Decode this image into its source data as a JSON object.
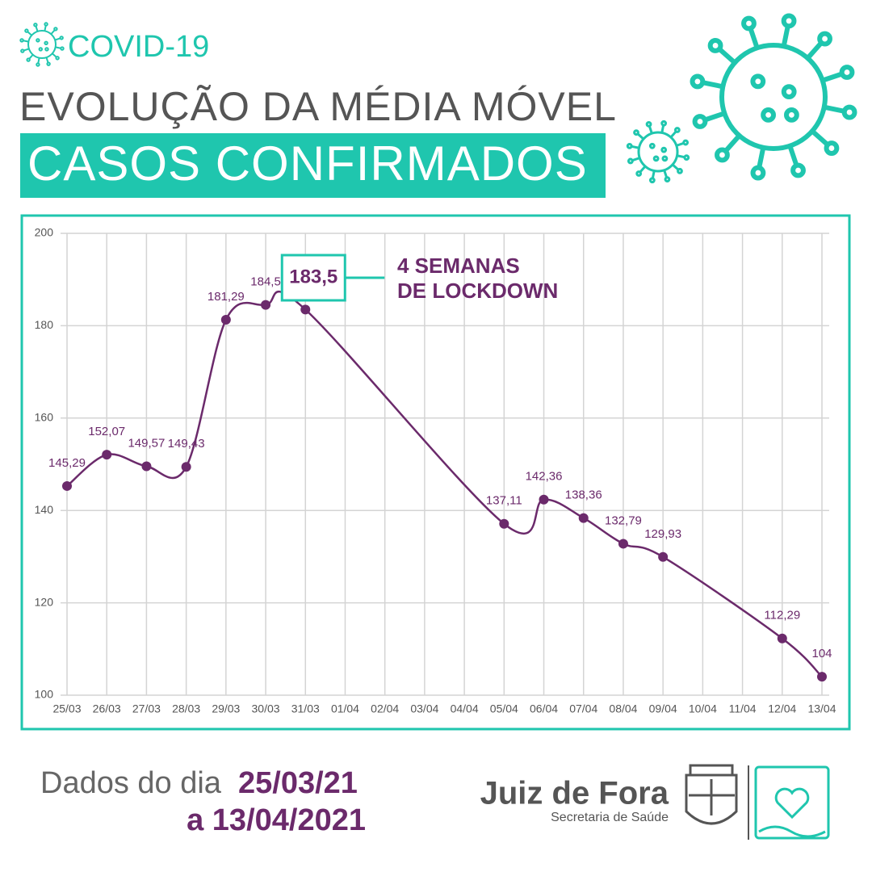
{
  "chart_data": {
    "type": "line",
    "badge": "COVID-19",
    "title": "EVOLUÇÃO DA MÉDIA MÓVEL",
    "subtitle": "CASOS CONFIRMADOS",
    "categories": [
      "25/03",
      "26/03",
      "27/03",
      "28/03",
      "29/03",
      "30/03",
      "31/03",
      "01/04",
      "02/04",
      "03/04",
      "04/04",
      "05/04",
      "06/04",
      "07/04",
      "08/04",
      "09/04",
      "10/04",
      "11/04",
      "12/04",
      "13/04"
    ],
    "series": [
      {
        "name": "Média móvel",
        "color": "#6b2a6b",
        "values": [
          145.29,
          152.07,
          149.57,
          149.43,
          181.29,
          184.5,
          183.5,
          null,
          null,
          null,
          null,
          137.11,
          142.36,
          138.36,
          132.79,
          129.93,
          null,
          null,
          112.29,
          104
        ],
        "value_labels": [
          "145,29",
          "152,07",
          "149,57",
          "149,43",
          "181,29",
          "184,5",
          "183,5",
          null,
          null,
          null,
          null,
          "137,11",
          "142,36",
          "138,36",
          "132,79",
          "129,93",
          null,
          null,
          "112,29",
          "104"
        ]
      }
    ],
    "ylim": [
      100,
      200
    ],
    "yticks": [
      100,
      120,
      140,
      160,
      180,
      200
    ],
    "grid": true,
    "callout": {
      "category": "31/03",
      "lines": [
        "4 SEMANAS",
        "DE LOCKDOWN"
      ],
      "color": "#1fc6ae"
    },
    "footer": {
      "prefix": "Dados do dia",
      "start": "25/03/21",
      "end": "a 13/04/2021",
      "org": "Juiz de Fora",
      "dept": "Secretaria de Saúde"
    }
  }
}
